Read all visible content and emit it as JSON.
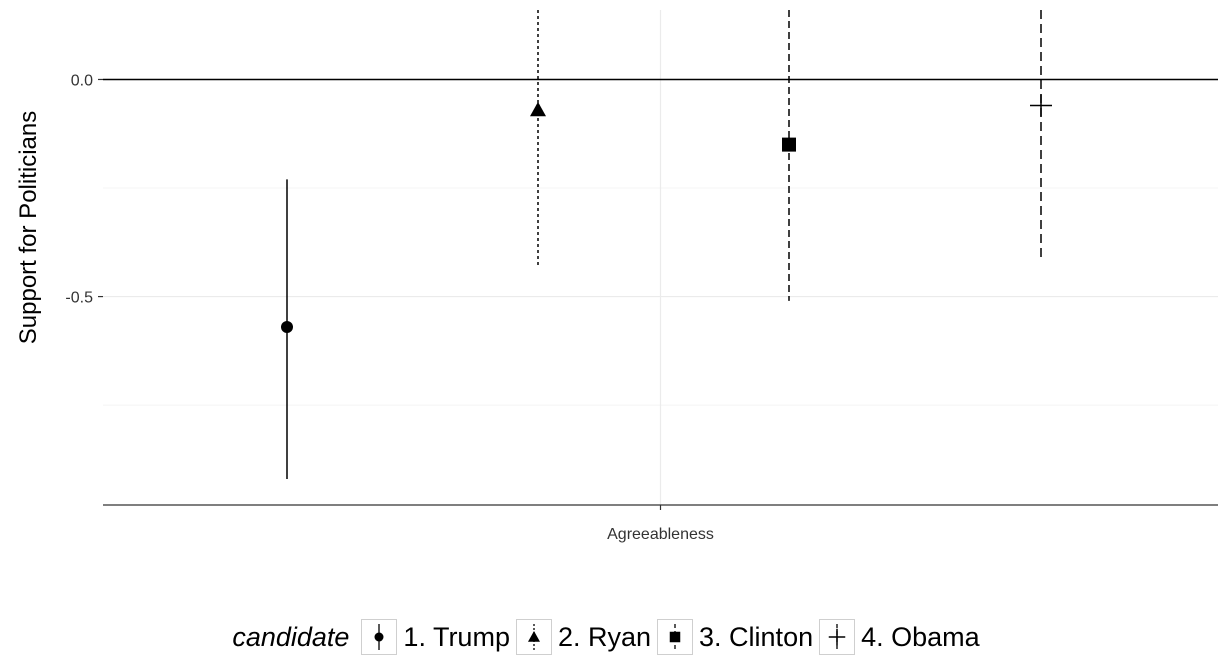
{
  "chart_data": {
    "type": "scatter",
    "subtype": "point-range",
    "title": "",
    "xlabel": "",
    "ylabel": "Support for Politicians",
    "categories": [
      "Agreeableness"
    ],
    "y_ticks": [
      "0.0",
      "-0.5"
    ],
    "ylim": [
      -0.98,
      0.16
    ],
    "grid": true,
    "reference_line": 0,
    "legend": {
      "title": "candidate",
      "position": "bottom"
    },
    "series": [
      {
        "name": "1. Trump",
        "x": "Agreeableness",
        "y": -0.57,
        "ymin": -0.92,
        "ymax": -0.23,
        "shape": "circle",
        "linetype": "solid"
      },
      {
        "name": "2. Ryan",
        "x": "Agreeableness",
        "y": -0.07,
        "ymin": -0.43,
        "ymax": 0.16,
        "shape": "triangle",
        "linetype": "dotted"
      },
      {
        "name": "3. Clinton",
        "x": "Agreeableness",
        "y": -0.15,
        "ymin": -0.51,
        "ymax": 0.16,
        "shape": "square",
        "linetype": "dashed"
      },
      {
        "name": "4. Obama",
        "x": "Agreeableness",
        "y": -0.06,
        "ymin": -0.42,
        "ymax": 0.16,
        "shape": "plus",
        "linetype": "longdash"
      }
    ]
  }
}
